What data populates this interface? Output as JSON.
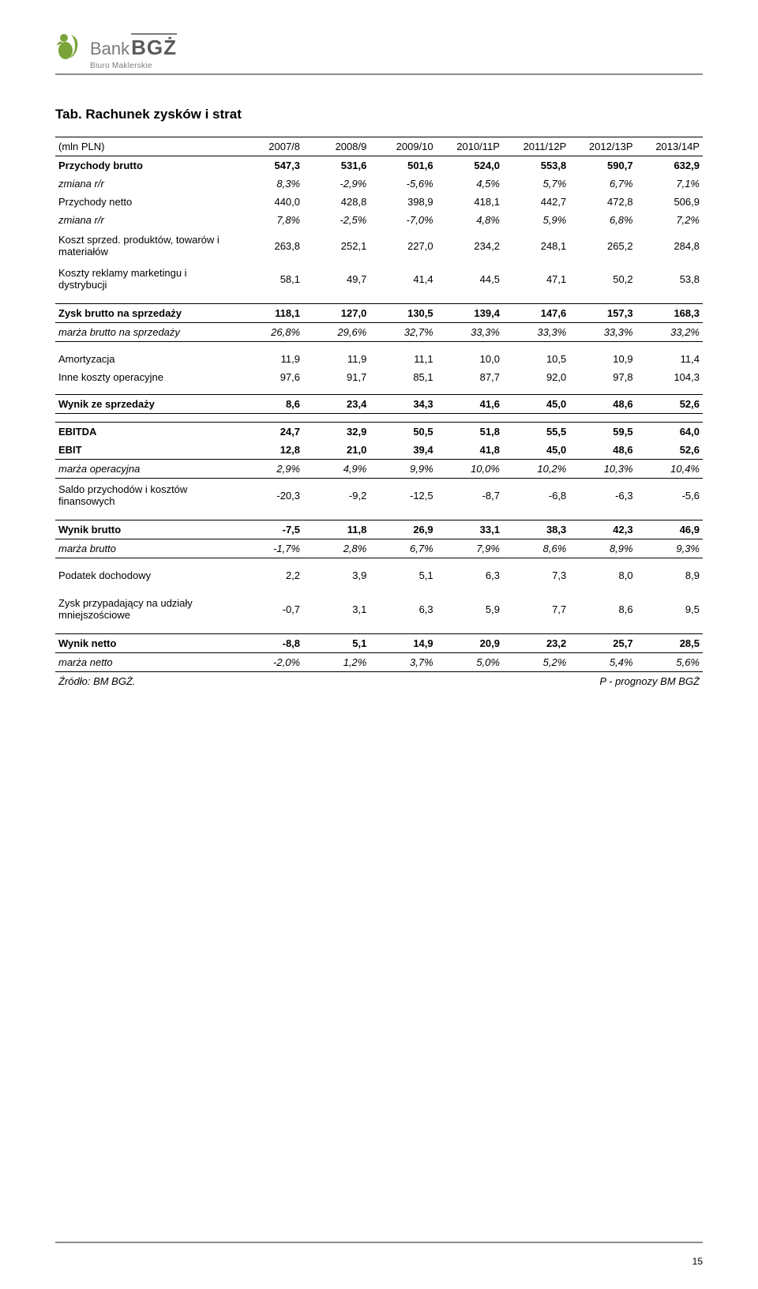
{
  "logo": {
    "bank": "Bank",
    "bgz": "BGŻ",
    "sub": "Biuro Maklerskie",
    "icon_color": "#7aa33a"
  },
  "title": "Tab. Rachunek zysków i strat",
  "columns": [
    "(mln PLN)",
    "2007/8",
    "2008/9",
    "2009/10",
    "2010/11P",
    "2011/12P",
    "2012/13P",
    "2013/14P"
  ],
  "rows": [
    {
      "label": "Przychody brutto",
      "vals": [
        "547,3",
        "531,6",
        "501,6",
        "524,0",
        "553,8",
        "590,7",
        "632,9"
      ],
      "cls": "bold"
    },
    {
      "label": "zmiana r/r",
      "vals": [
        "8,3%",
        "-2,9%",
        "-5,6%",
        "4,5%",
        "5,7%",
        "6,7%",
        "7,1%"
      ],
      "cls": "italic"
    },
    {
      "label": "Przychody netto",
      "vals": [
        "440,0",
        "428,8",
        "398,9",
        "418,1",
        "442,7",
        "472,8",
        "506,9"
      ],
      "cls": ""
    },
    {
      "label": "zmiana r/r",
      "vals": [
        "7,8%",
        "-2,5%",
        "-7,0%",
        "4,8%",
        "5,9%",
        "6,8%",
        "7,2%"
      ],
      "cls": "italic"
    },
    {
      "label": "Koszt sprzed. produktów, towarów i materiałów",
      "vals": [
        "263,8",
        "252,1",
        "227,0",
        "234,2",
        "248,1",
        "265,2",
        "284,8"
      ],
      "cls": "tall"
    },
    {
      "label": "Koszty reklamy marketingu i dystrybucji",
      "vals": [
        "58,1",
        "49,7",
        "41,4",
        "44,5",
        "47,1",
        "50,2",
        "53,8"
      ],
      "cls": "tall"
    },
    {
      "spacer": true
    },
    {
      "label": "Zysk brutto na sprzedaży",
      "vals": [
        "118,1",
        "127,0",
        "130,5",
        "139,4",
        "147,6",
        "157,3",
        "168,3"
      ],
      "cls": "bold border-top border-bottom"
    },
    {
      "label": "marża brutto na sprzedaży",
      "vals": [
        "26,8%",
        "29,6%",
        "32,7%",
        "33,3%",
        "33,3%",
        "33,3%",
        "33,2%"
      ],
      "cls": "italic border-bottom-thin"
    },
    {
      "spacer": true
    },
    {
      "label": "Amortyzacja",
      "vals": [
        "11,9",
        "11,9",
        "11,1",
        "10,0",
        "10,5",
        "10,9",
        "11,4"
      ],
      "cls": ""
    },
    {
      "label": "Inne koszty operacyjne",
      "vals": [
        "97,6",
        "91,7",
        "85,1",
        "87,7",
        "92,0",
        "97,8",
        "104,3"
      ],
      "cls": ""
    },
    {
      "spacer": true
    },
    {
      "label": "Wynik ze sprzedaży",
      "vals": [
        "8,6",
        "23,4",
        "34,3",
        "41,6",
        "45,0",
        "48,6",
        "52,6"
      ],
      "cls": "bold border-top border-bottom"
    },
    {
      "spacer": true
    },
    {
      "label": "EBITDA",
      "vals": [
        "24,7",
        "32,9",
        "50,5",
        "51,8",
        "55,5",
        "59,5",
        "64,0"
      ],
      "cls": "bold border-top"
    },
    {
      "label": "EBIT",
      "vals": [
        "12,8",
        "21,0",
        "39,4",
        "41,8",
        "45,0",
        "48,6",
        "52,6"
      ],
      "cls": "bold border-bottom"
    },
    {
      "label": "marża operacyjna",
      "vals": [
        "2,9%",
        "4,9%",
        "9,9%",
        "10,0%",
        "10,2%",
        "10,3%",
        "10,4%"
      ],
      "cls": "italic border-bottom-thin"
    },
    {
      "label": "Saldo przychodów i kosztów finansowych",
      "vals": [
        "-20,3",
        "-9,2",
        "-12,5",
        "-8,7",
        "-6,8",
        "-6,3",
        "-5,6"
      ],
      "cls": "tall"
    },
    {
      "spacer": true
    },
    {
      "label": "Wynik brutto",
      "vals": [
        "-7,5",
        "11,8",
        "26,9",
        "33,1",
        "38,3",
        "42,3",
        "46,9"
      ],
      "cls": "bold border-top border-bottom"
    },
    {
      "label": "marża brutto",
      "vals": [
        "-1,7%",
        "2,8%",
        "6,7%",
        "7,9%",
        "8,6%",
        "8,9%",
        "9,3%"
      ],
      "cls": "italic border-bottom-thin"
    },
    {
      "spacer": true
    },
    {
      "label": "Podatek dochodowy",
      "vals": [
        "2,2",
        "3,9",
        "5,1",
        "6,3",
        "7,3",
        "8,0",
        "8,9"
      ],
      "cls": ""
    },
    {
      "spacer": true
    },
    {
      "label": "Zysk przypadający na udziały mniejszościowe",
      "vals": [
        "-0,7",
        "3,1",
        "6,3",
        "5,9",
        "7,7",
        "8,6",
        "9,5"
      ],
      "cls": "tall"
    },
    {
      "spacer": true
    },
    {
      "label": "Wynik netto",
      "vals": [
        "-8,8",
        "5,1",
        "14,9",
        "20,9",
        "23,2",
        "25,7",
        "28,5"
      ],
      "cls": "bold border-top border-bottom"
    },
    {
      "label": "marża netto",
      "vals": [
        "-2,0%",
        "1,2%",
        "3,7%",
        "5,0%",
        "5,2%",
        "5,4%",
        "5,6%"
      ],
      "cls": "italic border-bottom-thin"
    }
  ],
  "source_left": "Źródło: BM BGŻ.",
  "source_right": "P - prognozy BM BGŻ",
  "page_number": "15",
  "colors": {
    "rule": "#8c8c8c",
    "text": "#000000",
    "logo_gray": "#7a7a7a"
  },
  "fonts": {
    "body_size_pt": 10,
    "title_size_pt": 13
  }
}
